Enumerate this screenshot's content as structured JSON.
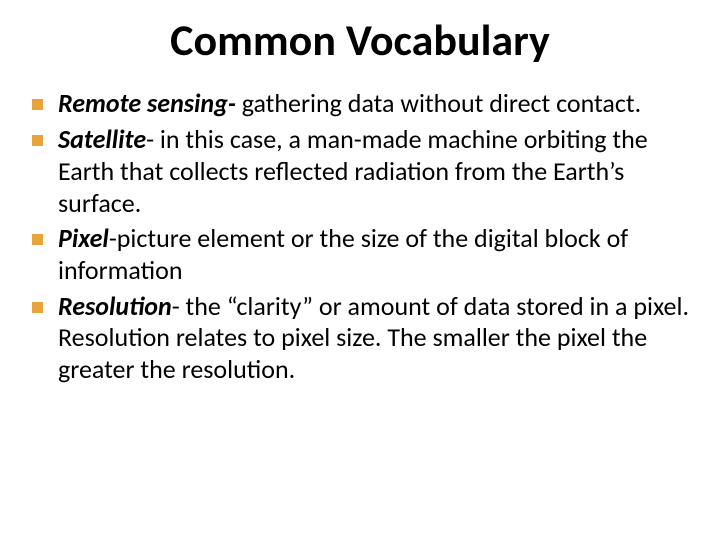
{
  "title": "Common Vocabulary",
  "bullet_color": "#e8a33d",
  "text_color": "#000000",
  "background_color": "#ffffff",
  "title_fontsize": 44,
  "body_fontsize": 26,
  "items": [
    {
      "term": "Remote sensing- ",
      "def": "gathering data without direct contact."
    },
    {
      "term": "Satellite",
      "def": "- in this case, a man-made machine orbiting the Earth that collects reflected radiation from the Earth’s surface."
    },
    {
      "term": "Pixel",
      "def": "-picture element or the size of the digital block of information"
    },
    {
      "term": "Resolution",
      "def": "- the “clarity” or amount of data stored in a pixel. Resolution relates to pixel size. The smaller the pixel the greater the resolution."
    }
  ]
}
